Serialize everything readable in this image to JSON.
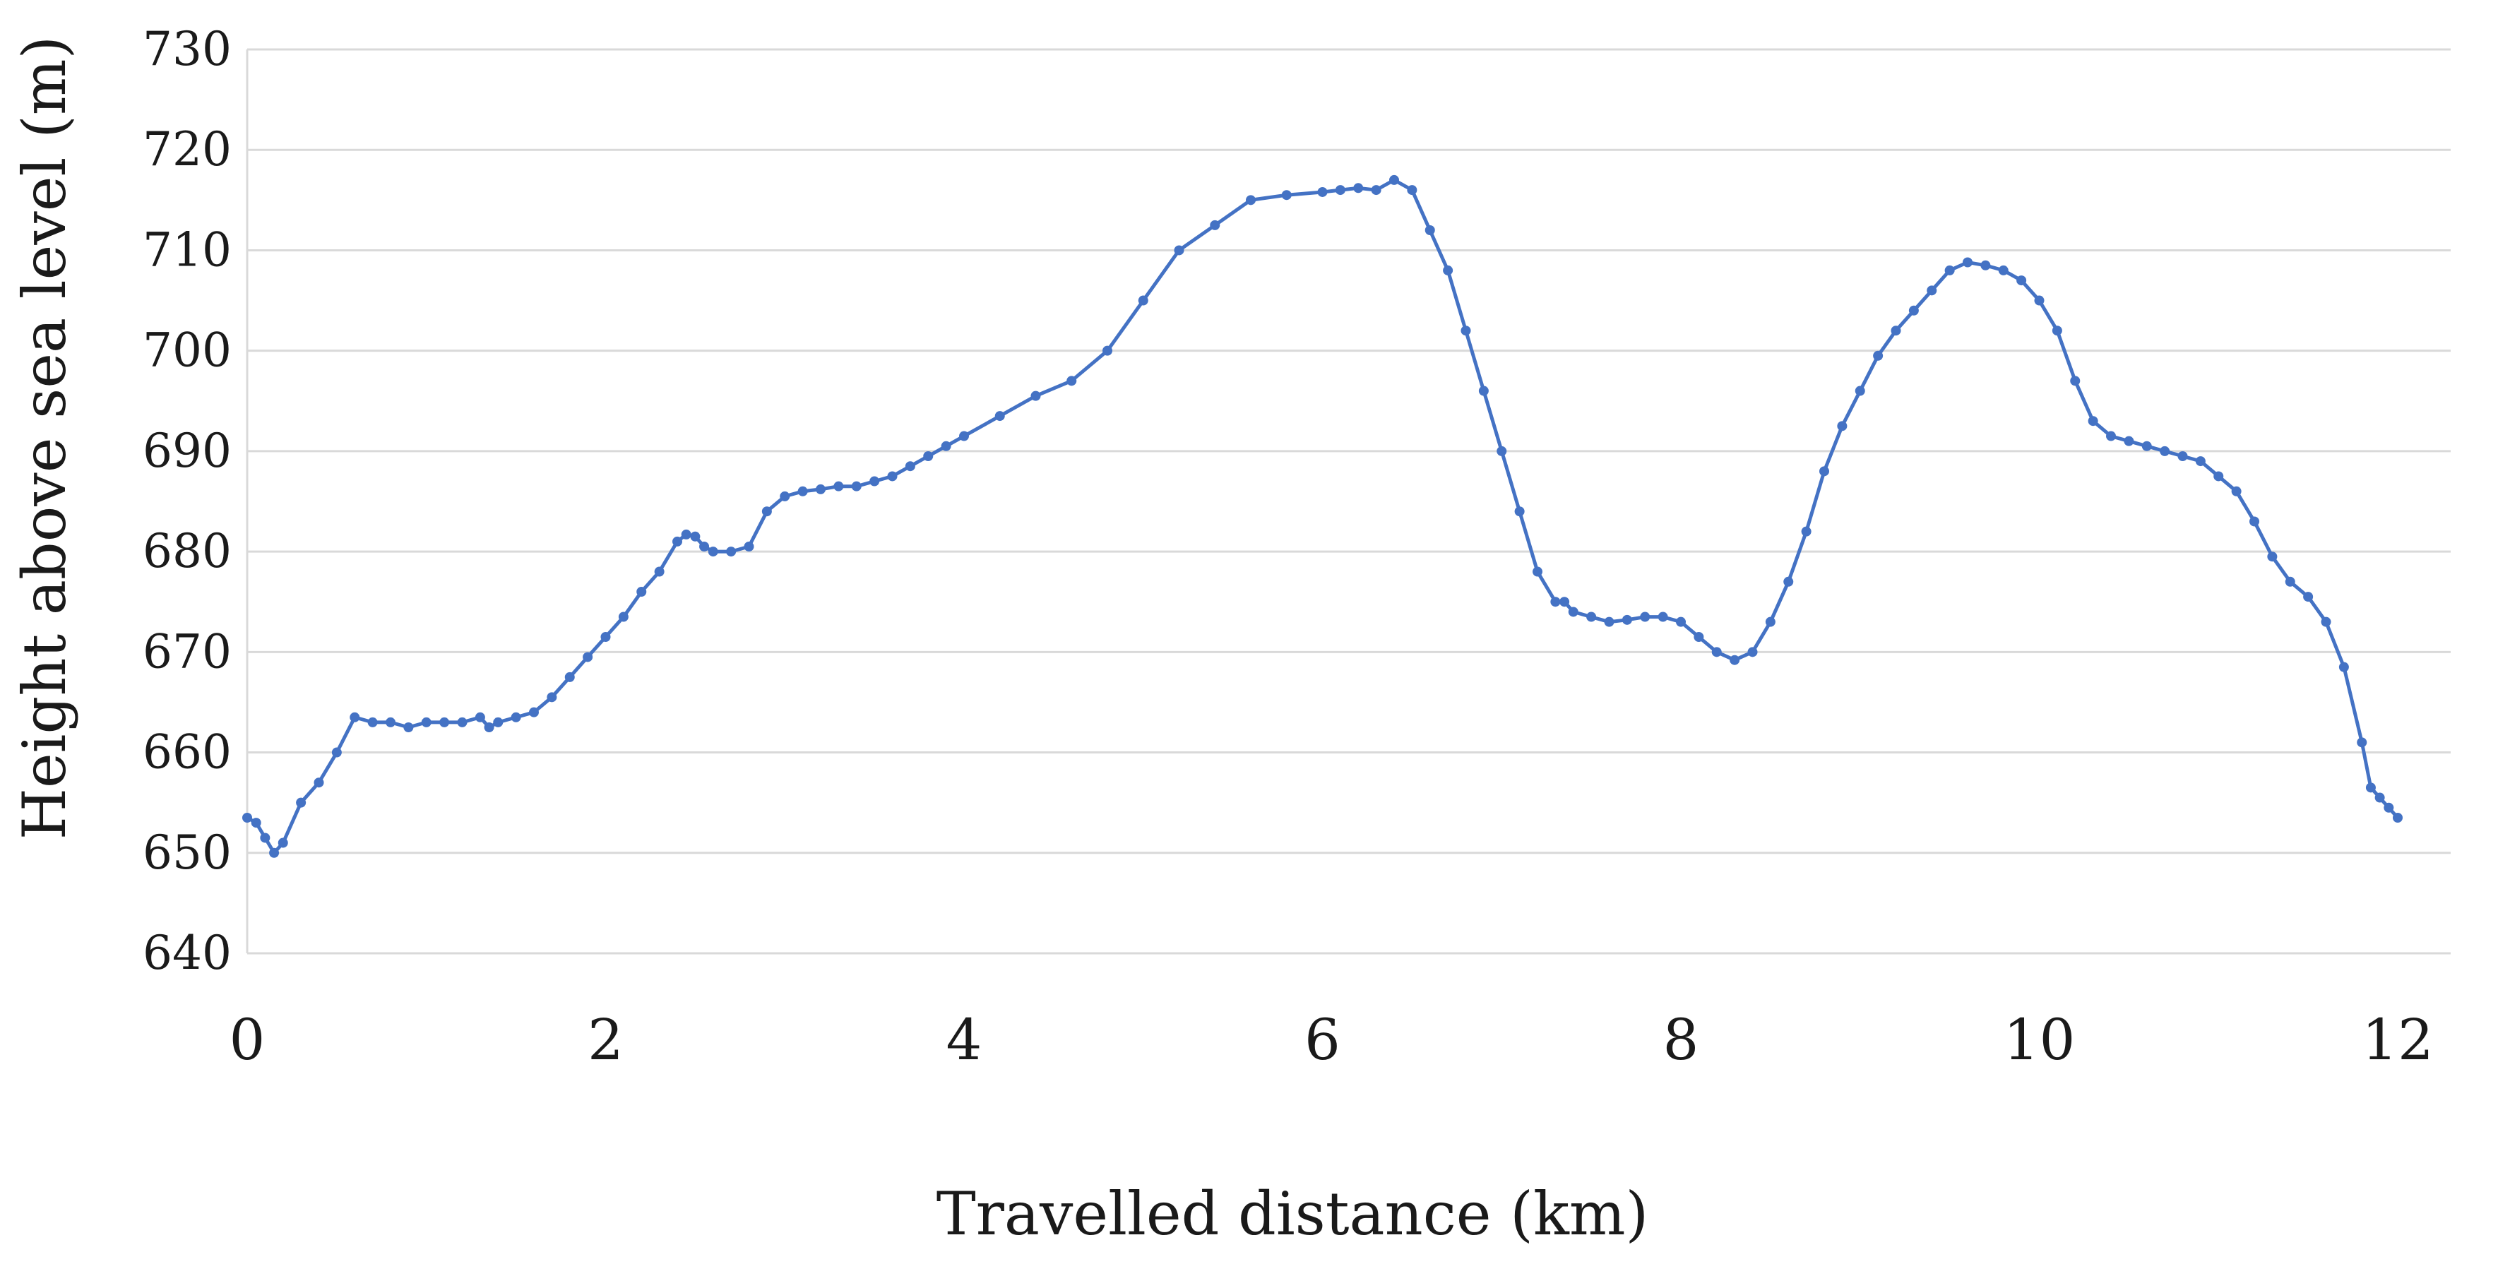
{
  "chart_data": {
    "type": "line",
    "xlabel": "Travelled distance (km)",
    "ylabel": "Height above sea level (m)",
    "xlim": [
      0,
      12
    ],
    "ylim": [
      640,
      730
    ],
    "xticks": [
      "0",
      "2",
      "4",
      "6",
      "8",
      "10",
      "12"
    ],
    "yticks": [
      "640",
      "650",
      "660",
      "670",
      "680",
      "690",
      "700",
      "710",
      "720",
      "730"
    ],
    "grid": "horizontal",
    "series_color": "#4472C4",
    "series": [
      {
        "x": [
          0,
          0.05,
          0.1,
          0.15,
          0.2,
          0.3,
          0.4,
          0.5,
          0.6,
          0.7,
          0.8,
          0.9,
          1.0,
          1.1,
          1.2,
          1.3,
          1.35,
          1.4,
          1.5,
          1.6,
          1.7,
          1.8,
          1.9,
          2.0,
          2.1,
          2.2,
          2.3,
          2.4,
          2.45,
          2.5,
          2.55,
          2.6,
          2.7,
          2.8,
          2.9,
          3.0,
          3.1,
          3.2,
          3.3,
          3.4,
          3.5,
          3.6,
          3.7,
          3.8,
          3.9,
          4.0,
          4.2,
          4.4,
          4.6,
          4.8,
          5.0,
          5.2,
          5.4,
          5.6,
          5.8,
          6.0,
          6.1,
          6.2,
          6.3,
          6.4,
          6.5,
          6.6,
          6.7,
          6.8,
          6.9,
          7.0,
          7.1,
          7.2,
          7.3,
          7.35,
          7.4,
          7.5,
          7.6,
          7.7,
          7.8,
          7.9,
          8.0,
          8.1,
          8.2,
          8.3,
          8.4,
          8.5,
          8.6,
          8.7,
          8.8,
          8.9,
          9.0,
          9.1,
          9.2,
          9.3,
          9.4,
          9.5,
          9.6,
          9.7,
          9.8,
          9.9,
          10.0,
          10.1,
          10.2,
          10.3,
          10.4,
          10.5,
          10.6,
          10.7,
          10.8,
          10.9,
          11.0,
          11.1,
          11.2,
          11.3,
          11.4,
          11.5,
          11.6,
          11.7,
          11.8,
          11.85,
          11.9,
          11.95,
          12.0
        ],
        "y": [
          653.5,
          653,
          651.5,
          650,
          651,
          655,
          657,
          660,
          663.5,
          663,
          663,
          662.5,
          663,
          663,
          663,
          663.5,
          662.5,
          663,
          663.5,
          664,
          665.5,
          667.5,
          669.5,
          671.5,
          673.5,
          676,
          678,
          681,
          681.7,
          681.5,
          680.5,
          680,
          680,
          680.5,
          684,
          685.5,
          686,
          686.2,
          686.5,
          686.5,
          687,
          687.5,
          688.5,
          689.5,
          690.5,
          691.5,
          693.5,
          695.5,
          697,
          700,
          705,
          710,
          712.5,
          715,
          715.5,
          715.8,
          716,
          716.2,
          716,
          717,
          716,
          712,
          708,
          702,
          696,
          690,
          684,
          678,
          675,
          675,
          674,
          673.5,
          673,
          673.2,
          673.5,
          673.5,
          673,
          671.5,
          670,
          669.2,
          670,
          673,
          677,
          682,
          688,
          692.5,
          696,
          699.5,
          702,
          704,
          706,
          708,
          708.8,
          708.5,
          708,
          707,
          705,
          702,
          697,
          693,
          691.5,
          691,
          690.5,
          690,
          689.5,
          689,
          687.5,
          686,
          683,
          679.5,
          677,
          675.5,
          673,
          668.5,
          661,
          656.5,
          655.5,
          654.5,
          653.5
        ]
      }
    ]
  }
}
